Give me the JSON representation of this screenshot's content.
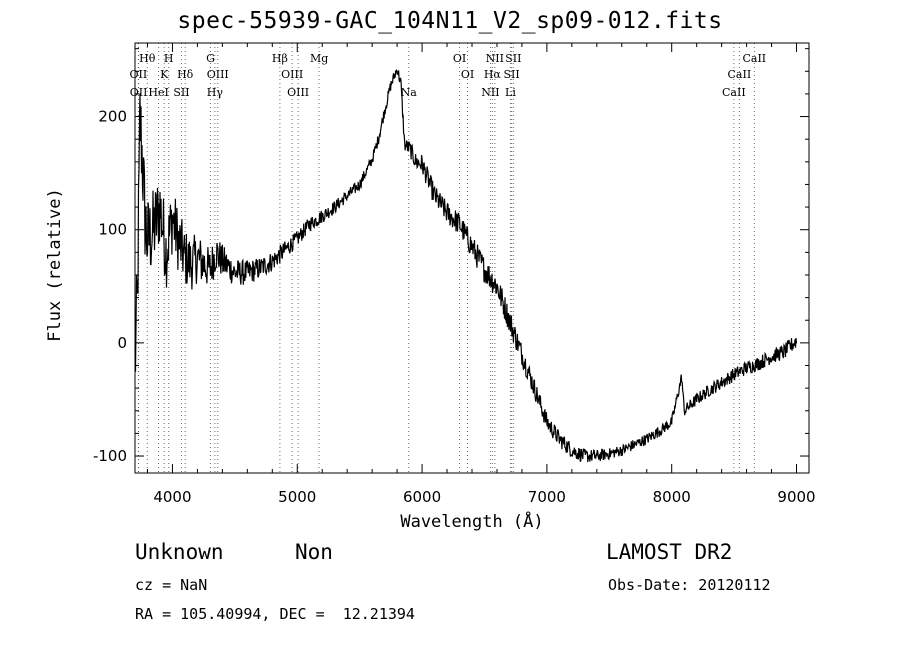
{
  "title": "spec-55939-GAC_104N11_V2_sp09-012.fits",
  "info": {
    "class_label": "Unknown",
    "subclass_label": "Non",
    "survey": "LAMOST DR2",
    "cz": "cz = NaN",
    "obs_date": "Obs-Date: 20120112",
    "coords": "RA = 105.40994, DEC =  12.21394"
  },
  "chart_data": {
    "type": "line",
    "xlabel": "Wavelength (Å)",
    "ylabel": "Flux (relative)",
    "xlim": [
      3700,
      9100
    ],
    "ylim": [
      -115,
      265
    ],
    "xticks": [
      4000,
      5000,
      6000,
      7000,
      8000,
      9000
    ],
    "yticks": [
      -100,
      0,
      100,
      200
    ],
    "grid": false,
    "series": [
      {
        "x": [
          3700,
          3720,
          3740,
          3760,
          3780,
          3800,
          3850,
          3900,
          3950,
          4000,
          4050,
          4100,
          4150,
          4200,
          4250,
          4300,
          4350,
          4400,
          4500,
          4600,
          4700,
          4800,
          4900,
          5000,
          5100,
          5200,
          5300,
          5400,
          5500,
          5600,
          5650,
          5700,
          5750,
          5800,
          5830,
          5860,
          5900,
          5950,
          6000,
          6100,
          6200,
          6300,
          6400,
          6500,
          6600,
          6700,
          6800,
          6900,
          7000,
          7100,
          7200,
          7300,
          7400,
          7500,
          7600,
          7700,
          7800,
          7900,
          8000,
          8080,
          8100,
          8200,
          8300,
          8400,
          8500,
          8600,
          8700,
          8800,
          8900,
          9000
        ],
        "y": [
          -20,
          40,
          200,
          160,
          110,
          90,
          100,
          120,
          80,
          110,
          90,
          75,
          70,
          75,
          70,
          65,
          80,
          72,
          62,
          62,
          66,
          72,
          82,
          92,
          105,
          112,
          120,
          130,
          140,
          162,
          180,
          205,
          228,
          242,
          230,
          175,
          172,
          160,
          158,
          130,
          115,
          105,
          85,
          65,
          50,
          20,
          -10,
          -40,
          -70,
          -85,
          -95,
          -100,
          -100,
          -98,
          -95,
          -90,
          -85,
          -78,
          -70,
          -30,
          -60,
          -50,
          -42,
          -35,
          -28,
          -22,
          -18,
          -12,
          -8,
          2
        ]
      }
    ],
    "noise_amplitude": {
      "x": [
        3700,
        3900,
        4200,
        4500,
        5000,
        5500,
        5800,
        6000,
        6600,
        7000,
        7500,
        8000,
        9000
      ],
      "y": [
        45,
        35,
        22,
        12,
        7,
        5,
        5,
        9,
        12,
        8,
        5,
        5,
        7
      ]
    },
    "emission_lines": [
      {
        "label": "Hθ",
        "x": 3798,
        "row": 0
      },
      {
        "label": "H",
        "x": 3970,
        "row": 0
      },
      {
        "label": "G",
        "x": 4305,
        "row": 0
      },
      {
        "label": "Hβ",
        "x": 4861,
        "row": 0
      },
      {
        "label": "Mg",
        "x": 5175,
        "row": 0
      },
      {
        "label": "OI",
        "x": 6300,
        "row": 0
      },
      {
        "label": "NII",
        "x": 6583,
        "row": 0
      },
      {
        "label": "SII",
        "x": 6731,
        "row": 0
      },
      {
        "label": "CaII",
        "x": 8662,
        "row": 0
      },
      {
        "label": "OII",
        "x": 3727,
        "row": 1
      },
      {
        "label": "K",
        "x": 3934,
        "row": 1
      },
      {
        "label": "Hδ",
        "x": 4102,
        "row": 1
      },
      {
        "label": "OIII",
        "x": 4363,
        "row": 1
      },
      {
        "label": "OIII",
        "x": 4959,
        "row": 1
      },
      {
        "label": "OI",
        "x": 6364,
        "row": 1
      },
      {
        "label": "Hα",
        "x": 6563,
        "row": 1
      },
      {
        "label": "SII",
        "x": 6717,
        "row": 1
      },
      {
        "label": "CaII",
        "x": 8542,
        "row": 1
      },
      {
        "label": "OII",
        "x": 3729,
        "row": 2
      },
      {
        "label": "HeI",
        "x": 3889,
        "row": 2
      },
      {
        "label": "SII",
        "x": 4072,
        "row": 2
      },
      {
        "label": "Hγ",
        "x": 4340,
        "row": 2
      },
      {
        "label": "OIII",
        "x": 5007,
        "row": 2
      },
      {
        "label": "Na",
        "x": 5893,
        "row": 2
      },
      {
        "label": "NII",
        "x": 6548,
        "row": 2
      },
      {
        "label": "Li",
        "x": 6708,
        "row": 2
      },
      {
        "label": "CaII",
        "x": 8498,
        "row": 2
      }
    ]
  }
}
